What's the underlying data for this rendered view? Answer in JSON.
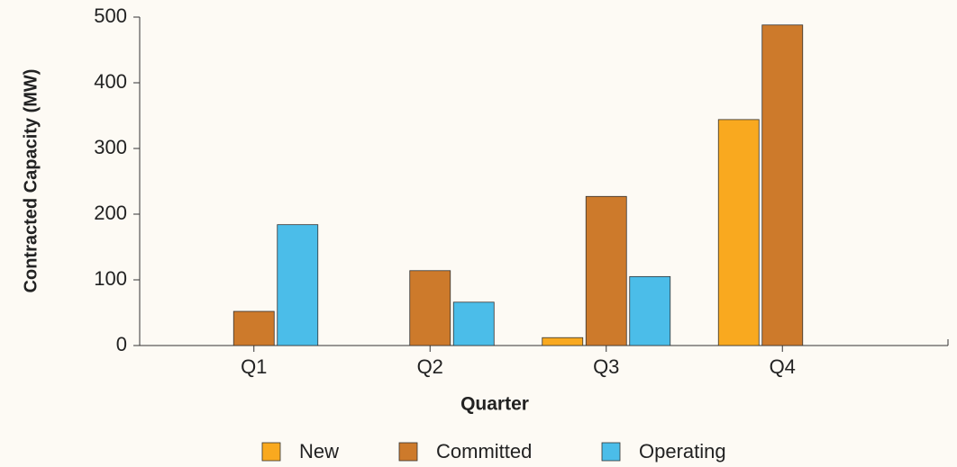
{
  "chart_data": {
    "type": "bar",
    "x_label": "Quarter",
    "y_label": "Contracted Capacity (MW)",
    "categories": [
      "Q1",
      "Q2",
      "Q3",
      "Q4"
    ],
    "series": [
      {
        "name": "New",
        "color": "#f9a91f",
        "values": [
          0,
          0,
          12,
          344
        ]
      },
      {
        "name": "Committed",
        "color": "#cd7a2b",
        "values": [
          52,
          114,
          227,
          488
        ]
      },
      {
        "name": "Operating",
        "color": "#4bbde9",
        "values": [
          184,
          66,
          105,
          null
        ]
      }
    ],
    "ylim": [
      0,
      500
    ],
    "yticks": [
      0,
      100,
      200,
      300,
      400,
      500
    ],
    "legend": "bottom"
  }
}
